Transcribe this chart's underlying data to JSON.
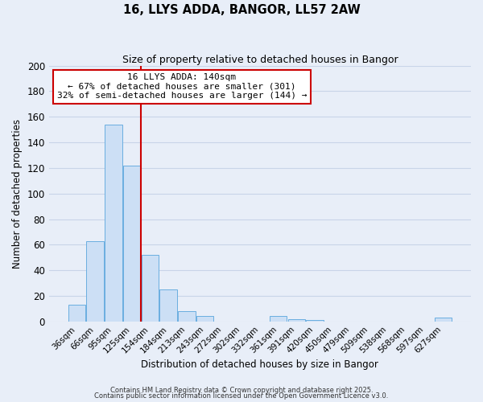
{
  "title": "16, LLYS ADDA, BANGOR, LL57 2AW",
  "subtitle": "Size of property relative to detached houses in Bangor",
  "xlabel": "Distribution of detached houses by size in Bangor",
  "ylabel": "Number of detached properties",
  "bar_labels": [
    "36sqm",
    "66sqm",
    "95sqm",
    "125sqm",
    "154sqm",
    "184sqm",
    "213sqm",
    "243sqm",
    "272sqm",
    "302sqm",
    "332sqm",
    "361sqm",
    "391sqm",
    "420sqm",
    "450sqm",
    "479sqm",
    "509sqm",
    "538sqm",
    "568sqm",
    "597sqm",
    "627sqm"
  ],
  "bar_values": [
    13,
    63,
    154,
    122,
    52,
    25,
    8,
    4,
    0,
    0,
    0,
    4,
    2,
    1,
    0,
    0,
    0,
    0,
    0,
    0,
    3
  ],
  "bar_color": "#ccdff5",
  "bar_edge_color": "#6aaee0",
  "vline_x": 3.5,
  "vline_color": "#cc0000",
  "annotation_title": "16 LLYS ADDA: 140sqm",
  "annotation_line1": "← 67% of detached houses are smaller (301)",
  "annotation_line2": "32% of semi-detached houses are larger (144) →",
  "annotation_box_facecolor": "#ffffff",
  "annotation_box_edgecolor": "#cc0000",
  "ylim": [
    0,
    200
  ],
  "yticks": [
    0,
    20,
    40,
    60,
    80,
    100,
    120,
    140,
    160,
    180,
    200
  ],
  "grid_color": "#c8d4e8",
  "background_color": "#e8eef8",
  "footer1": "Contains HM Land Registry data © Crown copyright and database right 2025.",
  "footer2": "Contains public sector information licensed under the Open Government Licence v3.0."
}
